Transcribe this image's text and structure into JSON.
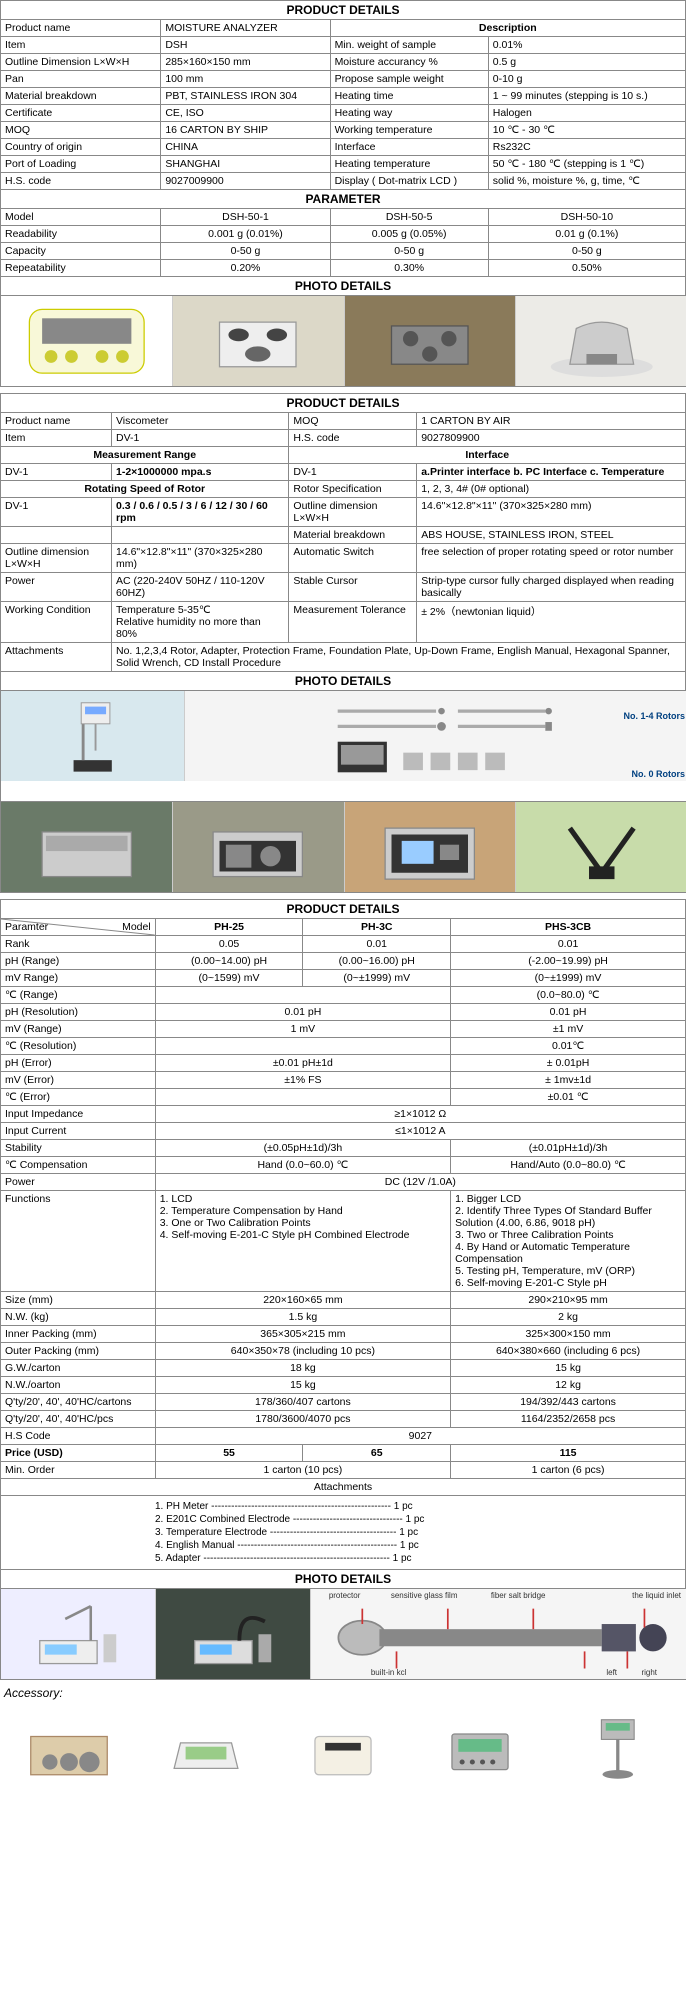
{
  "section1": {
    "title": "PRODUCT DETAILS",
    "descTitle": "Description",
    "rows": [
      [
        "Product name",
        "MOISTURE ANALYZER",
        "",
        ""
      ],
      [
        "Item",
        "DSH",
        "Min. weight of sample",
        "0.01%"
      ],
      [
        "Outline Dimension L×W×H",
        "285×160×150 mm",
        "Moisture accurancy %",
        "0.5 g"
      ],
      [
        "Pan",
        "100 mm",
        "Propose sample weight",
        "0-10 g"
      ],
      [
        "Material breakdown",
        "PBT, STAINLESS IRON 304",
        "Heating time",
        "1 ~ 99 minutes (stepping is 10 s.)"
      ],
      [
        "Certificate",
        "CE, ISO",
        "Heating way",
        "Halogen"
      ],
      [
        "MOQ",
        "16 CARTON BY SHIP",
        "Working temperature",
        "10 ℃ - 30 ℃"
      ],
      [
        "Country of origin",
        "CHINA",
        "Interface",
        "Rs232C"
      ],
      [
        "Port of Loading",
        "SHANGHAI",
        "Heating temperature",
        "50 ℃ - 180 ℃ (stepping is 1 ℃)"
      ],
      [
        "H.S. code",
        "9027009900",
        "Display ( Dot-matrix LCD )",
        "solid %, moisture %, g, time, ℃"
      ]
    ],
    "paramTitle": "PARAMETER",
    "paramHead": [
      "Model",
      "DSH-50-1",
      "DSH-50-5",
      "DSH-50-10"
    ],
    "paramRows": [
      [
        "Readability",
        "0.001 g (0.01%)",
        "0.005 g (0.05%)",
        "0.01 g (0.1%)"
      ],
      [
        "Capacity",
        "0-50 g",
        "0-50 g",
        "0-50 g"
      ],
      [
        "Repeatability",
        "0.20%",
        "0.30%",
        "0.50%"
      ]
    ],
    "photoTitle": "PHOTO DETAILS"
  },
  "section2": {
    "title": "PRODUCT DETAILS",
    "rows1": [
      [
        "Product name",
        "Viscometer",
        "MOQ",
        "1 CARTON BY AIR"
      ],
      [
        "Item",
        "DV-1",
        "H.S. code",
        "9027809900"
      ]
    ],
    "measHead": "Measurement Range",
    "intfHead": "Interface",
    "rows2_0": [
      "DV-1",
      "1-2×1000000 mpa.s",
      "DV-1",
      "a.Printer interface b. PC Interface c. Temperature"
    ],
    "rotorHead": "Rotating Speed of Rotor",
    "rows2_1": [
      "",
      "",
      "Rotor Specification",
      "1, 2, 3, 4# (0# optional)"
    ],
    "rows2_2": [
      "DV-1",
      "0.3 / 0.6 / 0.5 / 3 / 6 / 12 / 30 / 60 rpm",
      "Outline dimension  L×W×H",
      "14.6\"×12.8\"×11\" (370×325×280 mm)"
    ],
    "rows3": [
      [
        "",
        "",
        "Material breakdown",
        "ABS HOUSE, STAINLESS  IRON, STEEL"
      ],
      [
        "Outline dimension  L×W×H",
        "14.6\"×12.8\"×11\" (370×325×280 mm)",
        "Automatic Switch",
        "free selection of proper rotating speed or rotor number"
      ],
      [
        "Power",
        "AC (220-240V 50HZ / 110-120V 60HZ)",
        "Stable Cursor",
        "Strip-type cursor fully charged displayed when reading basically"
      ],
      [
        "Working Condition",
        "Temperature 5-35℃\nRelative humidity no more than 80%",
        "Measurement Tolerance",
        "± 2%（newtonian liquid）"
      ]
    ],
    "attachLabel": "Attachments",
    "attachVal": "No. 1,2,3,4 Rotor, Adapter, Protection Frame, Foundation Plate, Up-Down Frame, English Manual, Hexagonal Spanner, Solid Wrench, CD Install Procedure",
    "photoTitle": "PHOTO DETAILS",
    "rotorLabel1": "No. 1-4 Rotors",
    "rotorLabel2": "No. 0 Rotors"
  },
  "section3": {
    "title": "PRODUCT DETAILS",
    "head": [
      "Paramter",
      "Model",
      "PH-25",
      "PH-3C",
      "PHS-3CB"
    ],
    "rows": [
      [
        "Rank",
        "0.05",
        "0.01",
        "0.01"
      ],
      [
        "pH (Range)",
        "(0.00~14.00) pH",
        "(0.00~16.00) pH",
        "(-2.00~19.99) pH"
      ],
      [
        "mV Range)",
        "(0~1599) mV",
        "(0~±1999) mV",
        "(0~±1999) mV"
      ],
      [
        "℃ (Range)",
        "",
        "",
        "(0.0~80.0) ℃"
      ],
      [
        "pH (Resolution)",
        "",
        "0.01 pH",
        "0.01 pH"
      ],
      [
        "mV (Range)",
        "",
        "1 mV",
        "±1 mV"
      ],
      [
        "℃ (Resolution)",
        "",
        "",
        "0.01℃"
      ],
      [
        "pH (Error)",
        "",
        "±0.01 pH±1d",
        "± 0.01pH"
      ],
      [
        "mV (Error)",
        "",
        "±1% FS",
        "± 1mv±1d"
      ],
      [
        "℃ (Error)",
        "",
        "",
        "±0.01 ℃"
      ],
      [
        "Input Impedance",
        "",
        "≥1×1012 Ω",
        ""
      ],
      [
        "Input Current",
        "",
        "≤1×1012 A",
        ""
      ],
      [
        "Stability",
        "",
        "(±0.05pH±1d)/3h",
        "(±0.01pH±1d)/3h"
      ],
      [
        "℃ Compensation",
        "",
        "Hand (0.0~60.0) ℃",
        "Hand/Auto (0.0~80.0) ℃"
      ],
      [
        "Power",
        "",
        "DC (12V /1.0A)",
        ""
      ]
    ],
    "funcLabel": "Functions",
    "funcA": "1. LCD\n2. Temperature Compensation by Hand\n3. One or Two Calibration Points\n4. Self-moving E-201-C Style pH Combined Electrode",
    "funcB": "1. Bigger LCD\n2. Identify Three Types Of Standard Buffer\nSolution (4.00, 6.86, 9018 pH)\n3. Two or Three Calibration Points\n4. By Hand or Automatic Temperature\nCompensation\n5. Testing pH, Temperature, mV (ORP)\n6. Self-moving E-201-C Style pH",
    "rows2": [
      [
        "Size (mm)",
        "",
        "220×160×65 mm",
        "290×210×95 mm"
      ],
      [
        "N.W. (kg)",
        "",
        "1.5 kg",
        "2 kg"
      ],
      [
        "Inner Packing (mm)",
        "",
        "365×305×215 mm",
        "325×300×150 mm"
      ],
      [
        "Outer Packing (mm)",
        "",
        "640×350×78 (including 10 pcs)",
        "640×380×660 (including 6 pcs)"
      ],
      [
        "G.W./carton",
        "",
        "18 kg",
        "15 kg"
      ],
      [
        "N.W./oarton",
        "",
        "15 kg",
        "12 kg"
      ],
      [
        "Q'ty/20', 40', 40'HC/cartons",
        "",
        "178/360/407 cartons",
        "194/392/443 cartons"
      ],
      [
        "Q'ty/20', 40', 40'HC/pcs",
        "",
        "1780/3600/4070 pcs",
        "1164/2352/2658 pcs"
      ],
      [
        "H.S Code",
        "",
        "9027",
        ""
      ]
    ],
    "priceRow": [
      "Price (USD)",
      "55",
      "65",
      "115"
    ],
    "minOrder": [
      "Min. Order",
      "",
      "1 carton (10 pcs)",
      "1 carton (6 pcs)"
    ],
    "attachTitle": "Attachments",
    "attachments": [
      "1. PH Meter ------------------------------------------------------ 1 pc",
      "2. E201C Combined Electrode --------------------------------- 1 pc",
      "3. Temperature Electrode -------------------------------------- 1 pc",
      "4. English Manual ------------------------------------------------ 1 pc",
      "5. Adapter -------------------------------------------------------- 1 pc"
    ],
    "photoTitle": "PHOTO DETAILS",
    "accessory": "Accessory:",
    "diagLabels": {
      "protector": "protector",
      "glass": "sensitive glass film",
      "salt": "fiber salt bridge",
      "inlet": "the liquid inlet",
      "kcl": "built-in kcl",
      "left": "left",
      "right": "right"
    }
  }
}
